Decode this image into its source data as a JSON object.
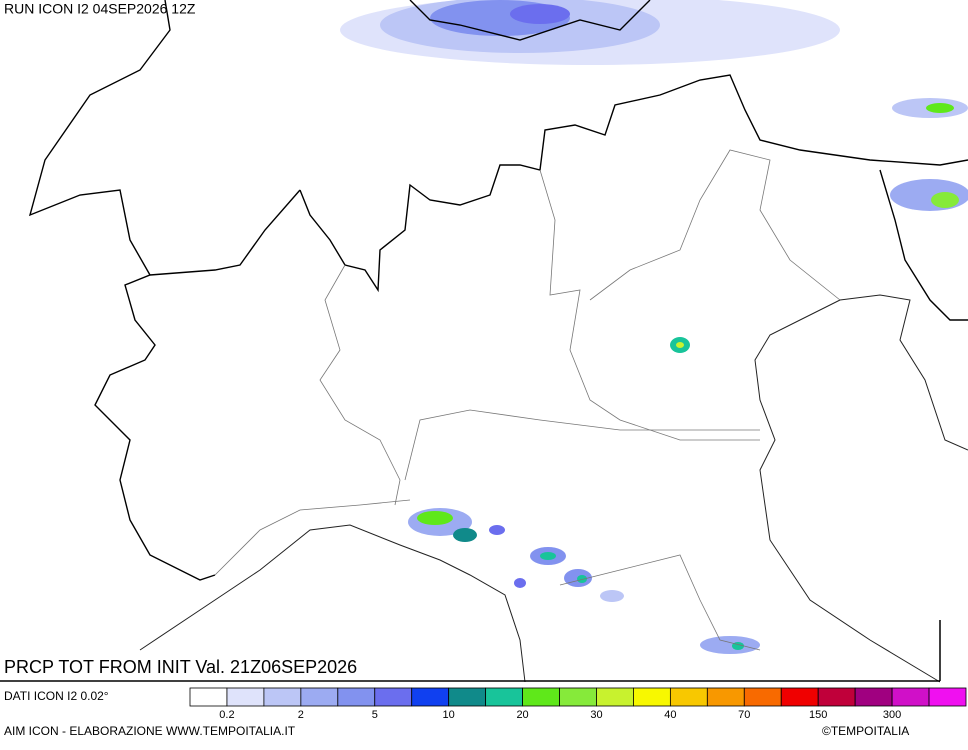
{
  "header": {
    "run": "RUN ICON I2 04SEP2026 12Z"
  },
  "footer": {
    "title": "PRCP TOT FROM INIT Val. 21Z06SEP2026",
    "source": "DATI ICON I2 0.02°",
    "credit": "AIM ICON - ELABORAZIONE WWW.TEMPOITALIA.IT",
    "copyright": "©TEMPOITALIA"
  },
  "legend": {
    "colors": [
      "#ffffff",
      "#dfe3fb",
      "#bcc6f6",
      "#9cabf2",
      "#8292ef",
      "#6b6eee",
      "#1040f0",
      "#108a8a",
      "#18c49a",
      "#5fe81a",
      "#86ea3a",
      "#c8f22e",
      "#f8f800",
      "#f8c800",
      "#f89800",
      "#f86a00",
      "#f00000",
      "#c0003a",
      "#a00080",
      "#d010c8",
      "#f010f0"
    ],
    "labels": [
      "0.2",
      "2",
      "5",
      "10",
      "20",
      "30",
      "40",
      "70",
      "150",
      "300"
    ]
  }
}
